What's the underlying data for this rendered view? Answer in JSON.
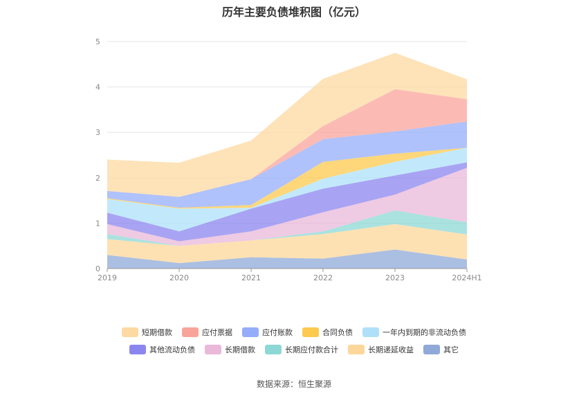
{
  "chart_data": {
    "type": "area",
    "stacked": true,
    "title": "历年主要负债堆积图（亿元）",
    "categories": [
      "2019",
      "2020",
      "2021",
      "2022",
      "2023",
      "2024H1"
    ],
    "ylim": [
      0,
      5
    ],
    "yticks": [
      "0",
      "1",
      "2",
      "3",
      "4",
      "5"
    ],
    "grid": true,
    "legend_position": "bottom",
    "series": [
      {
        "name": "其它",
        "color": "#8fa9d8",
        "values": [
          0.3,
          0.12,
          0.25,
          0.22,
          0.42,
          0.2
        ]
      },
      {
        "name": "长期递延收益",
        "color": "#fdd79a",
        "values": [
          0.35,
          0.38,
          0.37,
          0.54,
          0.56,
          0.55
        ]
      },
      {
        "name": "长期应付款合计",
        "color": "#8dd8d5",
        "values": [
          0.11,
          0.0,
          0.0,
          0.06,
          0.3,
          0.27
        ]
      },
      {
        "name": "长期借款",
        "color": "#eab8d9",
        "values": [
          0.22,
          0.1,
          0.2,
          0.42,
          0.35,
          1.2
        ]
      },
      {
        "name": "其他流动负债",
        "color": "#8b86ef",
        "values": [
          0.25,
          0.22,
          0.5,
          0.52,
          0.42,
          0.12
        ]
      },
      {
        "name": "一年内到期的非流动负债",
        "color": "#aee1f9",
        "values": [
          0.3,
          0.5,
          0.02,
          0.22,
          0.3,
          0.32
        ]
      },
      {
        "name": "合同负债",
        "color": "#fdc94e",
        "values": [
          0.02,
          0.02,
          0.06,
          0.37,
          0.18,
          0.0
        ]
      },
      {
        "name": "应付账款",
        "color": "#95adf9",
        "values": [
          0.16,
          0.24,
          0.57,
          0.5,
          0.49,
          0.58
        ]
      },
      {
        "name": "应付票据",
        "color": "#f9a49b",
        "values": [
          0.0,
          0.0,
          0.0,
          0.29,
          0.93,
          0.49
        ]
      },
      {
        "name": "短期借款",
        "color": "#fddaa2",
        "values": [
          0.69,
          0.75,
          0.85,
          1.04,
          0.8,
          0.44
        ]
      }
    ]
  },
  "legend": {
    "row1": [
      {
        "name": "短期借款",
        "color": "#fddaa2"
      },
      {
        "name": "应付票据",
        "color": "#f9a49b"
      },
      {
        "name": "应付账款",
        "color": "#95adf9"
      },
      {
        "name": "合同负债",
        "color": "#fdc94e"
      },
      {
        "name": "一年内到期的非流动负债",
        "color": "#aee1f9"
      }
    ],
    "row2": [
      {
        "name": "其他流动负债",
        "color": "#8b86ef"
      },
      {
        "name": "长期借款",
        "color": "#eab8d9"
      },
      {
        "name": "长期应付款合计",
        "color": "#8dd8d5"
      },
      {
        "name": "长期递延收益",
        "color": "#fdd79a"
      },
      {
        "name": "其它",
        "color": "#8fa9d8"
      }
    ]
  },
  "source": "数据来源：恒生聚源"
}
